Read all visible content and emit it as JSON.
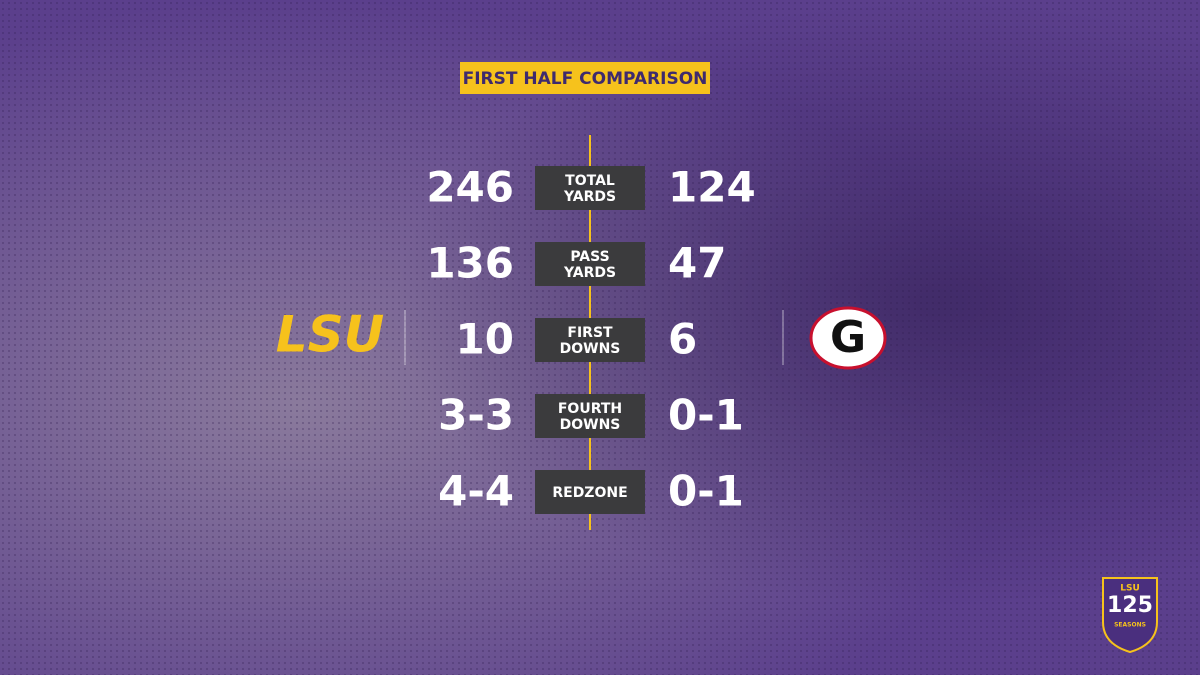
{
  "header": {
    "title": "FIRST HALF COMPARISON"
  },
  "teams": {
    "left": "LSU",
    "right": "G"
  },
  "stats": [
    {
      "label": [
        "TOTAL",
        "YARDS"
      ],
      "left": "246",
      "right": "124"
    },
    {
      "label": [
        "PASS",
        "YARDS"
      ],
      "left": "136",
      "right": "47"
    },
    {
      "label": [
        "FIRST",
        "DOWNS"
      ],
      "left": "10",
      "right": "6"
    },
    {
      "label": [
        "FOURTH",
        "DOWNS"
      ],
      "left": "3-3",
      "right": "0-1"
    },
    {
      "label": [
        "REDZONE"
      ],
      "left": "4-4",
      "right": "0-1"
    }
  ],
  "badge": {
    "top": "LSU",
    "number": "125",
    "bottom": "SEASONS"
  }
}
